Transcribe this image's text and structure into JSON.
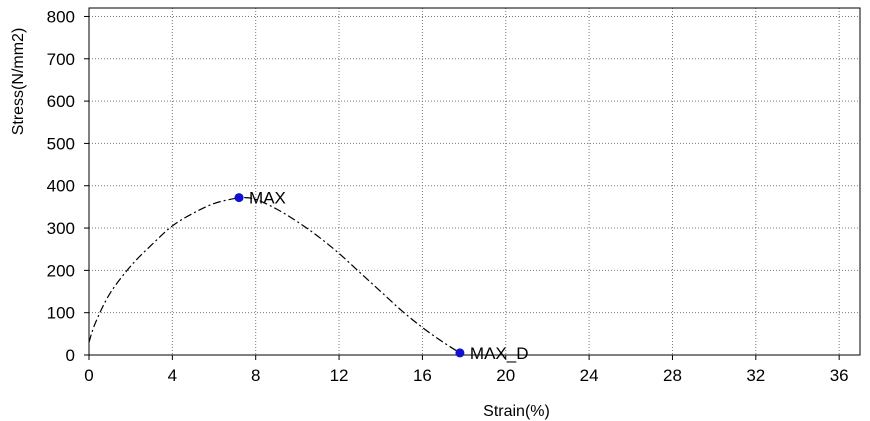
{
  "chart_data": {
    "type": "line",
    "xlabel": "Strain(%)",
    "ylabel": "Stress(N/mm2)",
    "xlim": [
      0,
      37
    ],
    "ylim": [
      0,
      820
    ],
    "x_ticks": [
      "0",
      "4",
      "8",
      "12",
      "16",
      "20",
      "24",
      "28",
      "32",
      "36"
    ],
    "y_ticks": [
      "0",
      "100",
      "200",
      "300",
      "400",
      "500",
      "600",
      "700",
      "800"
    ],
    "grid": true,
    "series": [
      {
        "line_style": "dash-dot",
        "color": "#000000",
        "x": [
          0.0,
          0.3,
          1.0,
          2.0,
          3.0,
          4.0,
          5.0,
          6.0,
          7.0,
          7.4,
          8.0,
          9.0,
          10.0,
          11.0,
          12.0,
          13.0,
          14.0,
          15.0,
          16.0,
          17.0,
          17.8
        ],
        "y": [
          30,
          75,
          145,
          210,
          260,
          305,
          335,
          358,
          370,
          372,
          368,
          345,
          315,
          280,
          240,
          195,
          150,
          105,
          65,
          30,
          5
        ]
      }
    ],
    "annotations": [
      {
        "label": "MAX",
        "x": 7.2,
        "y": 372,
        "marker_color": "#1010d0"
      },
      {
        "label": "MAX_D",
        "x": 17.8,
        "y": 5,
        "marker_color": "#1010d0"
      }
    ]
  }
}
